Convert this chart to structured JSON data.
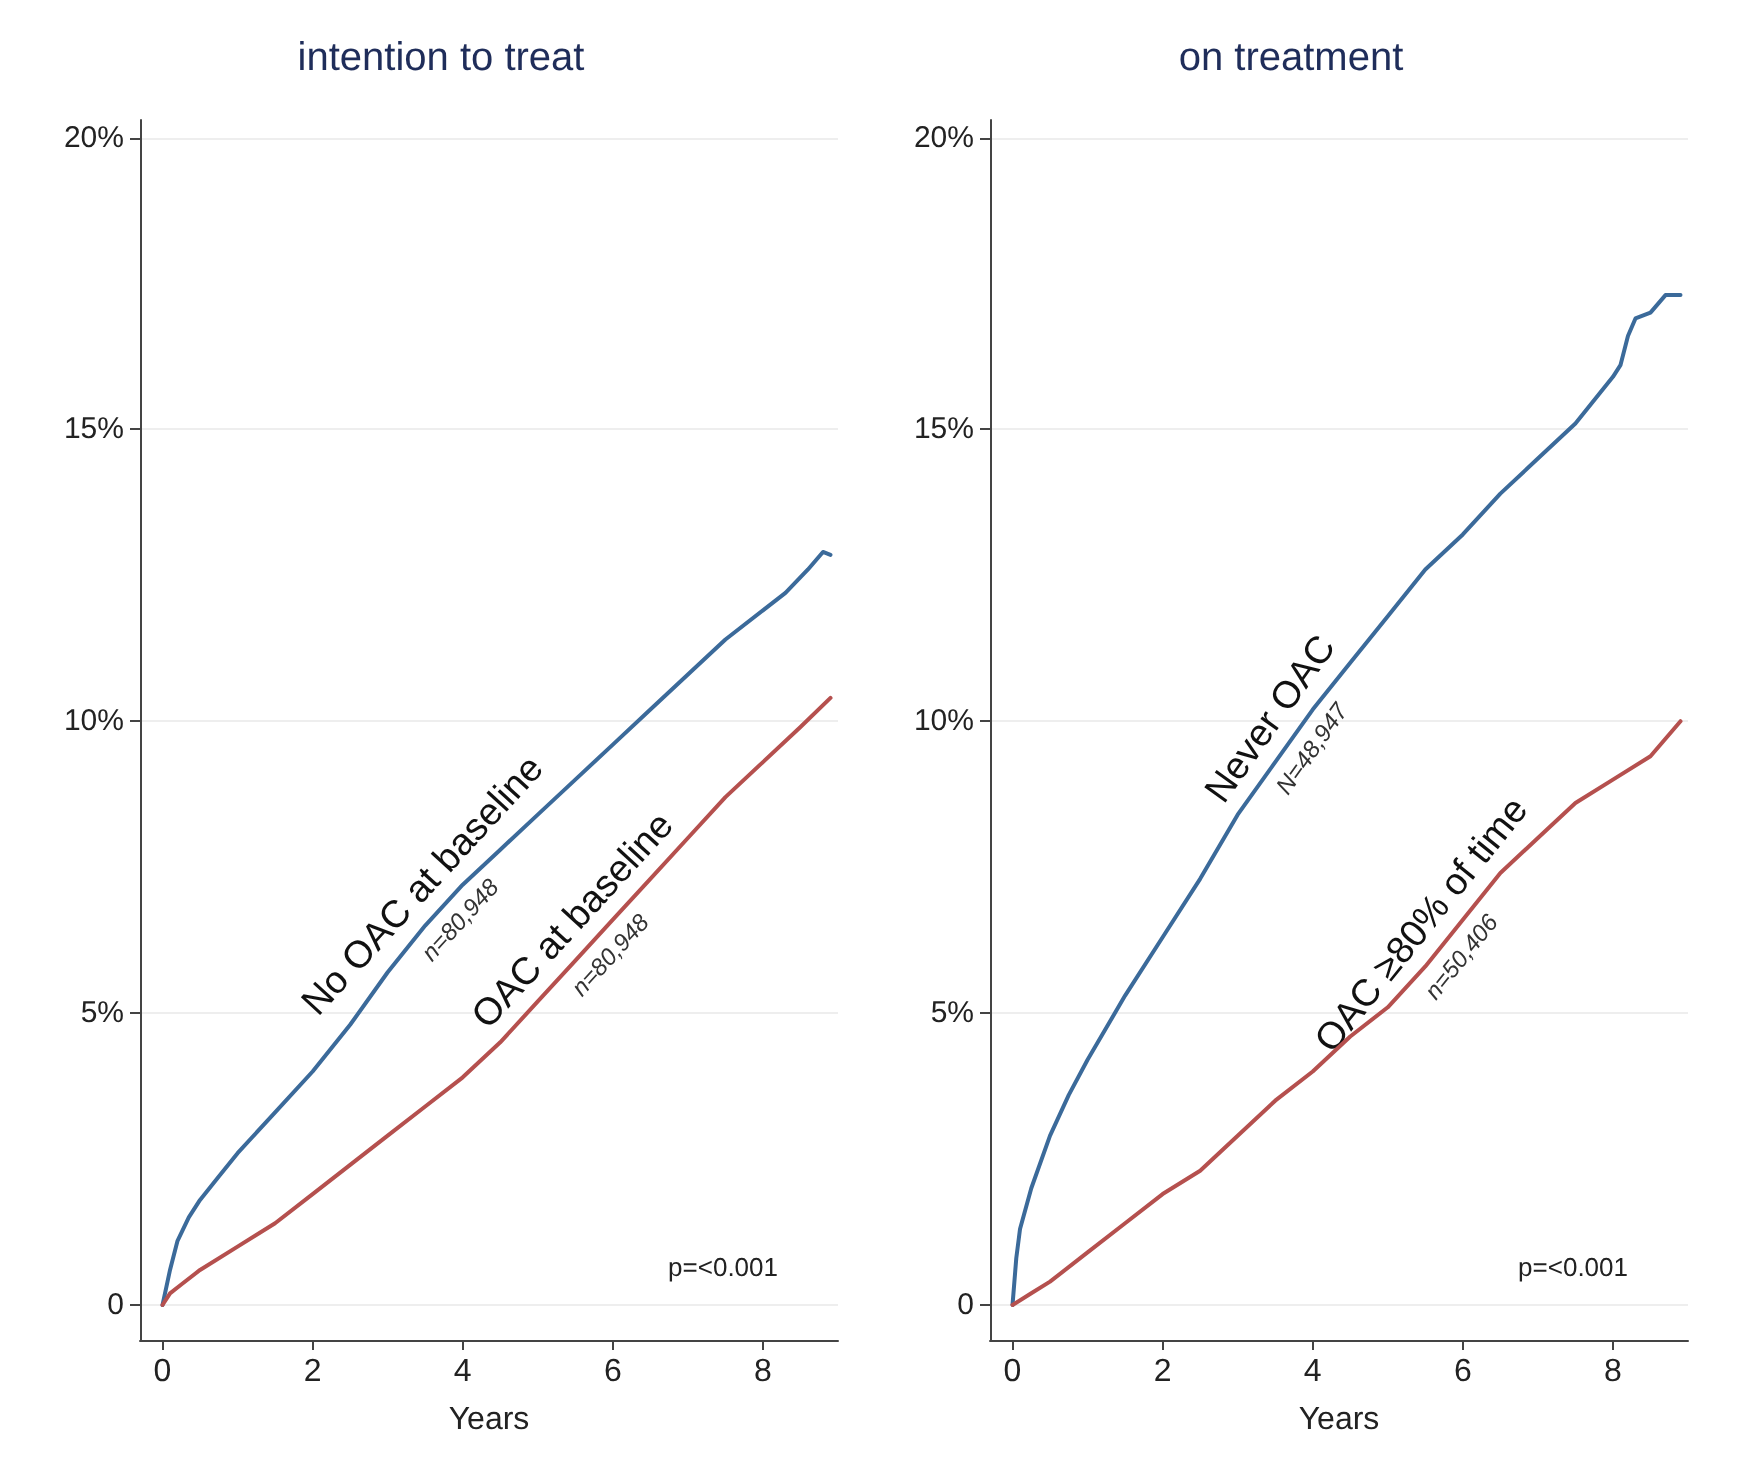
{
  "chart_data": [
    {
      "type": "line",
      "title": "intention to treat",
      "xlabel": "Years",
      "xlim": [
        -0.3,
        9
      ],
      "xticks": [
        0,
        2,
        4,
        6,
        8
      ],
      "ylim": [
        -0.6,
        20.3
      ],
      "yticks": [
        {
          "value": 0,
          "label": "0"
        },
        {
          "value": 5,
          "label": "5%"
        },
        {
          "value": 10,
          "label": "10%"
        },
        {
          "value": 15,
          "label": "15%"
        },
        {
          "value": 20,
          "label": "20%"
        }
      ],
      "grid": "y",
      "legend": false,
      "line_style": "solid",
      "marker": "none",
      "series": [
        {
          "name": "No OAC at baseline",
          "color": "#3b6a9a",
          "x": [
            0,
            0.1,
            0.2,
            0.35,
            0.5,
            0.75,
            1,
            1.5,
            2,
            2.5,
            3,
            3.5,
            4,
            4.5,
            5,
            5.5,
            6,
            6.5,
            7,
            7.5,
            8,
            8.3,
            8.6,
            8.8,
            8.9
          ],
          "values": [
            0,
            0.6,
            1.1,
            1.5,
            1.8,
            2.2,
            2.6,
            3.3,
            4.0,
            4.8,
            5.7,
            6.5,
            7.2,
            7.8,
            8.4,
            9.0,
            9.6,
            10.2,
            10.8,
            11.4,
            11.9,
            12.2,
            12.6,
            12.9,
            12.85
          ]
        },
        {
          "name": "OAC at baseline",
          "color": "#b5504e",
          "x": [
            0,
            0.1,
            0.25,
            0.5,
            1,
            1.5,
            2,
            2.5,
            3,
            3.5,
            4,
            4.5,
            5,
            5.5,
            6,
            6.5,
            7,
            7.5,
            8,
            8.5,
            8.9
          ],
          "values": [
            0,
            0.2,
            0.35,
            0.6,
            1.0,
            1.4,
            1.9,
            2.4,
            2.9,
            3.4,
            3.9,
            4.5,
            5.2,
            5.9,
            6.6,
            7.3,
            8.0,
            8.7,
            9.3,
            9.9,
            10.4
          ]
        }
      ],
      "annotations": [
        "n=80,948",
        "n=80,948",
        "p=<0.001"
      ]
    },
    {
      "type": "line",
      "title": "on treatment",
      "xlabel": "Years",
      "xlim": [
        -0.3,
        9
      ],
      "xticks": [
        0,
        2,
        4,
        6,
        8
      ],
      "ylim": [
        -0.6,
        20.3
      ],
      "yticks": [
        {
          "value": 0,
          "label": "0"
        },
        {
          "value": 5,
          "label": "5%"
        },
        {
          "value": 10,
          "label": "10%"
        },
        {
          "value": 15,
          "label": "15%"
        },
        {
          "value": 20,
          "label": "20%"
        }
      ],
      "grid": "y",
      "legend": false,
      "line_style": "solid",
      "marker": "none",
      "series": [
        {
          "name": "Never OAC",
          "color": "#3b6a9a",
          "x": [
            0,
            0.05,
            0.1,
            0.25,
            0.5,
            0.75,
            1,
            1.5,
            2,
            2.5,
            3,
            3.5,
            4,
            4.5,
            5,
            5.5,
            6,
            6.5,
            7,
            7.5,
            8,
            8.1,
            8.2,
            8.3,
            8.5,
            8.7,
            8.9
          ],
          "values": [
            0,
            0.8,
            1.3,
            2.0,
            2.9,
            3.6,
            4.2,
            5.3,
            6.3,
            7.3,
            8.4,
            9.3,
            10.2,
            11.0,
            11.8,
            12.6,
            13.2,
            13.9,
            14.5,
            15.1,
            15.9,
            16.1,
            16.6,
            16.9,
            17.0,
            17.3,
            17.3
          ]
        },
        {
          "name": "OAC ≥80% of time",
          "color": "#b5504e",
          "x": [
            0,
            0.25,
            0.5,
            1,
            1.5,
            2,
            2.5,
            3,
            3.5,
            4,
            4.5,
            5,
            5.5,
            6,
            6.5,
            7,
            7.5,
            8,
            8.5,
            8.9
          ],
          "values": [
            0,
            0.2,
            0.4,
            0.9,
            1.4,
            1.9,
            2.3,
            2.9,
            3.5,
            4.0,
            4.6,
            5.1,
            5.8,
            6.6,
            7.4,
            8.0,
            8.6,
            9.0,
            9.4,
            10.0
          ]
        }
      ],
      "annotations": [
        "N=48,947",
        "n=50,406",
        "p=<0.001"
      ]
    }
  ]
}
